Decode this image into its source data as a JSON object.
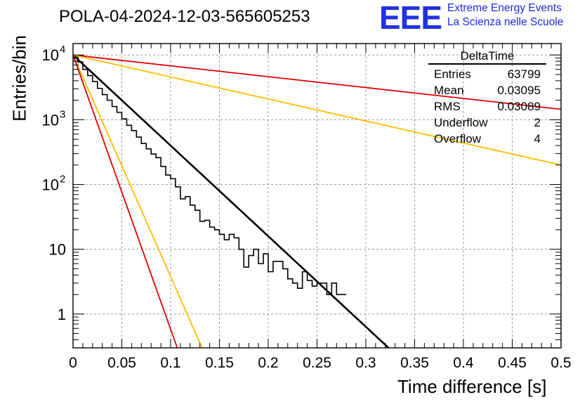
{
  "header": {
    "title": "POLA-04-2024-12-03-565605253",
    "logo_text": "EEE",
    "logo_line1": "Extreme Energy Events",
    "logo_line2": "La Scienza nelle Scuole"
  },
  "stats": {
    "title": "DeltaTime",
    "rows": [
      {
        "label": "Entries",
        "value": "63799"
      },
      {
        "label": "Mean",
        "value": "0.03095"
      },
      {
        "label": "RMS",
        "value": "0.03089"
      },
      {
        "label": "Underflow",
        "value": "2"
      },
      {
        "label": "Overflow",
        "value": "4"
      }
    ]
  },
  "chart_data": {
    "type": "line",
    "xlabel": "Time difference [s]",
    "ylabel": "Entries/bin",
    "xlim": [
      0,
      0.5
    ],
    "ylim": [
      0.3,
      15000
    ],
    "yscale": "log",
    "grid": true,
    "x_ticks": [
      "0",
      "0.05",
      "0.1",
      "0.15",
      "0.2",
      "0.25",
      "0.3",
      "0.35",
      "0.4",
      "0.45",
      "0.5"
    ],
    "y_ticks": [
      {
        "value": 1,
        "label": "1"
      },
      {
        "value": 10,
        "label": "10"
      },
      {
        "value": 100,
        "label": "10",
        "exp": "2"
      },
      {
        "value": 1000,
        "label": "10",
        "exp": "3"
      },
      {
        "value": 10000,
        "label": "10",
        "exp": "4"
      }
    ],
    "histogram": {
      "bin_width": 0.005,
      "values": [
        9500,
        7800,
        6000,
        4800,
        3900,
        3050,
        2450,
        2000,
        1600,
        1300,
        1030,
        820,
        680,
        540,
        430,
        355,
        295,
        260,
        190,
        140,
        123,
        92,
        60,
        65,
        48,
        40,
        27,
        28,
        22,
        20,
        17,
        14,
        17,
        15,
        10,
        5.3,
        8,
        10,
        6,
        8.5,
        4.5,
        6.5,
        6.5,
        5,
        3.5,
        3,
        2.5,
        4.5,
        3.3,
        2.7,
        3,
        3,
        2,
        3,
        2,
        2
      ]
    },
    "fits": [
      {
        "color": "#000000",
        "x0": 0.0,
        "y0": 10000,
        "x1": 0.3233,
        "y1": 0.3
      },
      {
        "color": "#dd0000",
        "x0": 0.0,
        "y0": 10000,
        "x1": 0.5,
        "y1": 1450
      },
      {
        "color": "#ffbb00",
        "x0": 0.0,
        "y0": 10000,
        "x1": 0.5,
        "y1": 200
      },
      {
        "color": "#ffbb00",
        "x0": 0.0,
        "y0": 10000,
        "x1": 0.1322,
        "y1": 0.3
      },
      {
        "color": "#dd0000",
        "x0": 0.0,
        "y0": 10000,
        "x1": 0.1068,
        "y1": 0.3
      }
    ]
  }
}
